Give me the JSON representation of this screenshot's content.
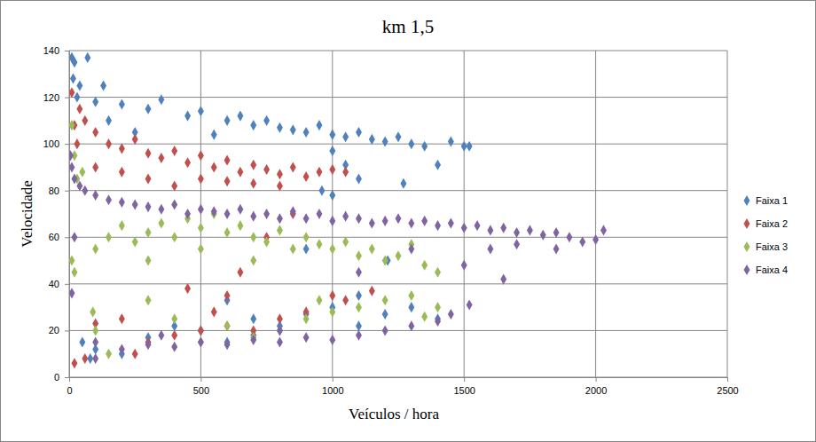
{
  "chart_data": {
    "type": "scatter",
    "title": "km 1,5",
    "x_label": "Veículos / hora",
    "y_label": "Velocidade",
    "xlim": [
      0,
      2500
    ],
    "xticks": [
      0,
      500,
      1000,
      1500,
      2000,
      2500
    ],
    "ylim": [
      0,
      140
    ],
    "yticks": [
      0,
      20,
      40,
      60,
      80,
      100,
      120,
      140
    ],
    "grid": true,
    "legend": "right",
    "marker": "diamond",
    "series": [
      {
        "name": "Faixa 1",
        "color": "#4f81bd",
        "x": [
          10,
          20,
          70,
          15,
          40,
          130,
          30,
          100,
          200,
          300,
          350,
          450,
          500,
          600,
          650,
          700,
          750,
          800,
          850,
          900,
          950,
          1000,
          1050,
          1100,
          1150,
          1200,
          1250,
          1300,
          1350,
          1450,
          1500,
          1520,
          1400,
          1270,
          250,
          150,
          550,
          1000,
          1050,
          1100,
          1000,
          960,
          1210,
          900,
          600,
          700,
          800,
          900,
          1000,
          1100,
          1200,
          1300,
          1400,
          50,
          100,
          200,
          300,
          400,
          500,
          600,
          700,
          80,
          1100
        ],
        "values": [
          137,
          135,
          137,
          128,
          125,
          125,
          120,
          118,
          117,
          115,
          119,
          112,
          114,
          110,
          112,
          108,
          110,
          107,
          106,
          105,
          108,
          104,
          103,
          105,
          102,
          101,
          103,
          100,
          99,
          101,
          99,
          99,
          91,
          83,
          105,
          110,
          104,
          97,
          91,
          85,
          78,
          80,
          50,
          55,
          33,
          25,
          22,
          27,
          30,
          35,
          27,
          30,
          25,
          15,
          12,
          10,
          17,
          22,
          20,
          15,
          18,
          8,
          22
        ]
      },
      {
        "name": "Faixa 2",
        "color": "#c0504d",
        "x": [
          10,
          40,
          20,
          60,
          30,
          100,
          150,
          200,
          250,
          300,
          350,
          400,
          450,
          500,
          550,
          600,
          650,
          700,
          750,
          800,
          850,
          900,
          950,
          1000,
          1050,
          100,
          200,
          300,
          400,
          500,
          600,
          700,
          800,
          850,
          750,
          650,
          600,
          450,
          1150,
          20,
          60,
          100,
          200,
          300,
          400,
          500,
          600,
          700,
          800,
          900,
          1000,
          1050,
          250,
          550
        ],
        "values": [
          122,
          115,
          108,
          110,
          100,
          105,
          100,
          98,
          102,
          96,
          94,
          97,
          92,
          95,
          90,
          93,
          88,
          91,
          89,
          87,
          90,
          86,
          88,
          89,
          88,
          90,
          88,
          85,
          82,
          85,
          84,
          83,
          82,
          70,
          60,
          45,
          35,
          38,
          37,
          6,
          8,
          23,
          25,
          15,
          18,
          20,
          22,
          20,
          25,
          28,
          35,
          33,
          10,
          28
        ]
      },
      {
        "name": "Faixa 3",
        "color": "#9bbb59",
        "x": [
          10,
          20,
          30,
          50,
          10,
          20,
          100,
          150,
          200,
          250,
          300,
          350,
          400,
          450,
          500,
          550,
          600,
          650,
          700,
          750,
          800,
          850,
          900,
          950,
          1000,
          1050,
          1100,
          1150,
          1200,
          1250,
          1300,
          1350,
          1400,
          300,
          500,
          700,
          90,
          100,
          300,
          400,
          500,
          600,
          700,
          800,
          900,
          1000,
          1100,
          1200,
          1300,
          1400,
          150,
          1350,
          950
        ],
        "values": [
          108,
          95,
          85,
          88,
          50,
          45,
          55,
          60,
          65,
          58,
          62,
          66,
          60,
          68,
          64,
          70,
          62,
          65,
          60,
          58,
          63,
          55,
          60,
          57,
          55,
          58,
          52,
          55,
          50,
          52,
          57,
          48,
          45,
          50,
          55,
          50,
          28,
          20,
          33,
          25,
          15,
          22,
          17,
          20,
          25,
          28,
          30,
          33,
          35,
          30,
          10,
          26,
          33
        ]
      },
      {
        "name": "Faixa 4",
        "color": "#8064a2",
        "x": [
          5,
          10,
          20,
          40,
          60,
          100,
          150,
          200,
          250,
          300,
          350,
          400,
          450,
          500,
          550,
          600,
          650,
          700,
          750,
          800,
          850,
          900,
          950,
          1000,
          1050,
          1100,
          1150,
          1200,
          1250,
          1300,
          1350,
          1400,
          1450,
          1500,
          1550,
          1600,
          1650,
          1700,
          1750,
          1800,
          1850,
          1900,
          1950,
          2000,
          2030,
          1600,
          1700,
          1850,
          1500,
          1520,
          1650,
          1300,
          10,
          20,
          100,
          200,
          300,
          400,
          500,
          600,
          700,
          800,
          900,
          1000,
          1100,
          1200,
          1300,
          1400,
          1450,
          100,
          350,
          800,
          1100
        ],
        "values": [
          95,
          90,
          85,
          82,
          80,
          78,
          76,
          75,
          74,
          73,
          72,
          74,
          70,
          72,
          71,
          70,
          72,
          69,
          70,
          68,
          71,
          68,
          70,
          67,
          69,
          68,
          66,
          67,
          68,
          66,
          67,
          65,
          66,
          64,
          65,
          63,
          64,
          62,
          63,
          61,
          62,
          60,
          58,
          59,
          63,
          55,
          57,
          55,
          48,
          31,
          42,
          55,
          36,
          60,
          15,
          12,
          14,
          13,
          15,
          14,
          16,
          15,
          17,
          16,
          18,
          20,
          22,
          24,
          27,
          8,
          18,
          20,
          45
        ]
      }
    ]
  }
}
